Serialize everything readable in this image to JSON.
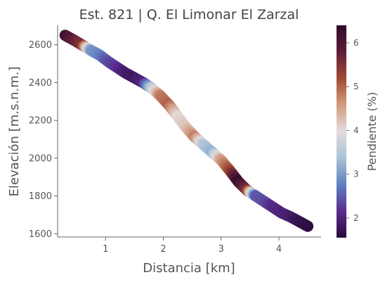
{
  "chart_data": {
    "type": "scatter",
    "title": "Est. 821 | Q. El Limonar El Zarzal",
    "xlabel": "Distancia [km]",
    "ylabel": "Elevación [m.s.n.m.]",
    "xlim": [
      0.17,
      4.73
    ],
    "ylim": [
      1583,
      2703
    ],
    "xticks": [
      1,
      2,
      3,
      4
    ],
    "yticks": [
      1600,
      1800,
      2000,
      2200,
      2400,
      2600
    ],
    "grid": false,
    "colorbar": {
      "label": "Pendiente (%)",
      "range": [
        1.55,
        6.4
      ],
      "ticks": [
        2,
        3,
        4,
        5,
        6
      ],
      "colormap": [
        "#2a0a3c",
        "#5a2d8f",
        "#5f7fc0",
        "#a9c3d6",
        "#e3dbde",
        "#d29c80",
        "#a24a34",
        "#5e1e3a",
        "#2d0a2b"
      ]
    },
    "x": [
      0.3,
      0.45,
      0.6,
      0.75,
      0.9,
      1.05,
      1.2,
      1.35,
      1.5,
      1.65,
      1.8,
      1.95,
      2.1,
      2.25,
      2.4,
      2.55,
      2.7,
      2.85,
      3.0,
      3.15,
      3.3,
      3.45,
      3.6,
      3.75,
      3.9,
      4.05,
      4.2,
      4.35,
      4.5
    ],
    "y": [
      2650,
      2625,
      2598,
      2570,
      2545,
      2510,
      2480,
      2450,
      2425,
      2400,
      2370,
      2330,
      2280,
      2220,
      2160,
      2110,
      2070,
      2030,
      1990,
      1935,
      1875,
      1830,
      1800,
      1770,
      1740,
      1710,
      1690,
      1665,
      1640
    ],
    "slope": [
      6.2,
      5.8,
      5.5,
      3.0,
      2.8,
      2.4,
      2.2,
      1.9,
      1.8,
      2.0,
      3.5,
      4.8,
      5.0,
      4.0,
      4.2,
      4.8,
      3.5,
      3.2,
      4.5,
      5.2,
      6.3,
      5.5,
      2.5,
      2.4,
      2.1,
      2.0,
      1.9,
      1.7,
      1.6
    ]
  }
}
